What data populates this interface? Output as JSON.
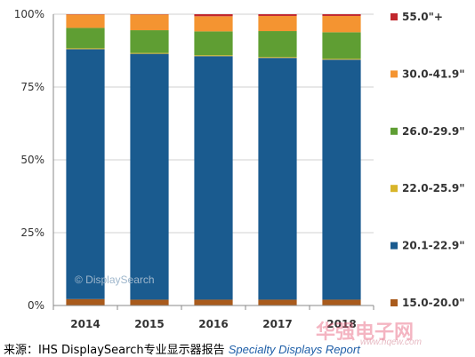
{
  "chart_data": {
    "type": "bar",
    "stacked": true,
    "categories": [
      "2014",
      "2015",
      "2016",
      "2017",
      "2018"
    ],
    "ylim": [
      0,
      100
    ],
    "yticks": [
      "0%",
      "25%",
      "50%",
      "75%",
      "100%"
    ],
    "ytick_values": [
      0,
      25,
      50,
      75,
      100
    ],
    "grid": true,
    "legend_position": "right",
    "series": [
      {
        "name": "15.0-20.0\"",
        "color": "#a95b1c",
        "values": [
          2.2,
          2.0,
          2.0,
          2.0,
          2.0
        ]
      },
      {
        "name": "20.1-22.9\"",
        "color": "#1a5b8f",
        "values": [
          85.8,
          84.4,
          83.6,
          83.0,
          82.4
        ]
      },
      {
        "name": "22.0-25.9\"",
        "color": "#d8b52a",
        "values": [
          0.3,
          0.3,
          0.3,
          0.3,
          0.3
        ]
      },
      {
        "name": "26.0-29.9\"",
        "color": "#5f9e33",
        "values": [
          7.0,
          7.8,
          8.2,
          8.9,
          9.1
        ]
      },
      {
        "name": "30.0-41.9\"",
        "color": "#f49431",
        "values": [
          4.6,
          5.4,
          5.2,
          5.2,
          5.6
        ]
      },
      {
        "name": "55.0\"+",
        "color": "#c1272d",
        "values": [
          0.1,
          0.1,
          0.7,
          0.6,
          0.6
        ]
      }
    ]
  },
  "watermark": "© DisplaySearch",
  "source": {
    "prefix": "来源：IHS DisplaySearch专业显示器报告 ",
    "report_name": "Specialty  Displays Report"
  },
  "site_watermark": {
    "name": "华强电子网",
    "url": "www.hqew.com"
  }
}
